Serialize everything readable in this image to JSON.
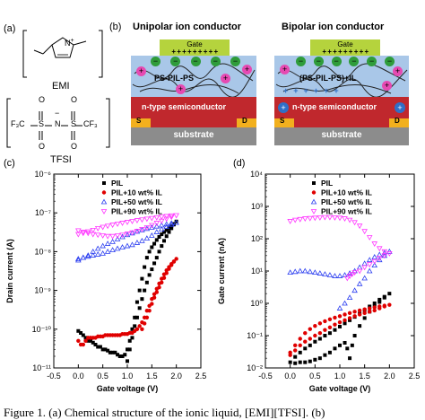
{
  "panel_a": {
    "letter": "(a)",
    "cation_name": "EMI",
    "anion_name": "TFSI",
    "cation_n": "N",
    "cation_plus": "+",
    "anion_n": "N",
    "anion_minus": "−",
    "anion_s": "S",
    "anion_cf3_left": "F₃C",
    "anion_cf3_right": "CF₃",
    "anion_o": "O"
  },
  "panel_b": {
    "letter": "(b)",
    "left_title": "Unipolar ion conductor",
    "right_title": "Bipolar ion conductor",
    "gate": "Gate",
    "left_layer": "PS-PIL-PS",
    "right_layer": "(PS-PIL-PS)+IL",
    "semiconductor": "n-type semiconductor",
    "source": "S",
    "drain": "D",
    "substrate": "substrate",
    "plus": "+",
    "minus": "−",
    "gate_plus_row": "+ + + + + + + + +"
  },
  "panel_c": {
    "letter": "(c)"
  },
  "panel_d": {
    "letter": "(d)"
  },
  "caption_fragment": "Figure 1. (a) Chemical structure of the ionic liquid, [EMI][TFSI]. (b)",
  "colors": {
    "gate": "#b5d33d",
    "electrolyte": "#a9c7e8",
    "semiconductor": "#c0282d",
    "substrate": "#8c8c8c",
    "electrode": "#f2b01e",
    "plus_ion": "#e64ab2",
    "minus_ion": "#2f9c3a",
    "semi_plus": "#2f6fc7",
    "s_pil": "#000000",
    "s_10": "#e00000",
    "s_50": "#2b3ef0",
    "s_90": "#ff33ff"
  },
  "chart_data": [
    {
      "type": "scatter",
      "xlabel": "Gate voltage (V)",
      "ylabel": "Drain current (A)",
      "xlim": [
        -0.5,
        2.5
      ],
      "ylim": [
        1e-11,
        1e-06
      ],
      "yscale": "log",
      "xticks": [
        "-0.5",
        "0.0",
        "0.5",
        "1.0",
        "1.5",
        "2.0",
        "2.5"
      ],
      "yticks": [
        "10⁻¹¹",
        "10⁻¹⁰",
        "10⁻⁹",
        "10⁻⁸",
        "10⁻⁷",
        "10⁻⁶"
      ],
      "legend_position": "top-center",
      "series": [
        {
          "name": "PIL",
          "marker": "square",
          "color": "#000000",
          "x": [
            0.0,
            0.05,
            0.1,
            0.15,
            0.2,
            0.25,
            0.3,
            0.35,
            0.4,
            0.45,
            0.5,
            0.55,
            0.6,
            0.65,
            0.7,
            0.75,
            0.8,
            0.85,
            0.9,
            0.95,
            1.0,
            1.05,
            1.1,
            1.15,
            1.2,
            1.25,
            1.3,
            1.35,
            1.4,
            1.45,
            1.5,
            1.55,
            1.6,
            1.65,
            1.7,
            1.75,
            1.8,
            1.85,
            1.9,
            1.95,
            2.0,
            1.95,
            1.9,
            1.85,
            1.8,
            1.75,
            1.7,
            1.65,
            1.6,
            1.55,
            1.5,
            1.45,
            1.4,
            1.35,
            1.3,
            1.25,
            1.2,
            1.15,
            1.1,
            1.05,
            1.0
          ],
          "y": [
            9e-11,
            8e-11,
            7e-11,
            6e-11,
            5e-11,
            5e-11,
            4.5e-11,
            4e-11,
            3.5e-11,
            3.5e-11,
            3e-11,
            3e-11,
            2.8e-11,
            2.5e-11,
            2.5e-11,
            2.5e-11,
            2.2e-11,
            2e-11,
            2e-11,
            2.2e-11,
            3e-11,
            5e-11,
            1e-10,
            2e-10,
            5e-10,
            1e-09,
            2e-09,
            4e-09,
            7e-09,
            1e-08,
            1.3e-08,
            1.6e-08,
            2e-08,
            2.4e-08,
            2.8e-08,
            3.2e-08,
            3.6e-08,
            4e-08,
            4.6e-08,
            5.2e-08,
            6e-08,
            5e-08,
            4e-08,
            3.2e-08,
            2.5e-08,
            1.9e-08,
            1.4e-08,
            1e-08,
            7e-09,
            5e-09,
            3.5e-09,
            2.5e-09,
            1.6e-09,
            1e-09,
            6e-10,
            3.5e-10,
            2e-10,
            1.2e-10,
            6e-11,
            3e-11,
            1.5e-11
          ]
        },
        {
          "name": "PIL+10 wt% IL",
          "marker": "circle",
          "color": "#e00000",
          "x": [
            0.0,
            0.05,
            0.1,
            0.15,
            0.2,
            0.25,
            0.3,
            0.35,
            0.4,
            0.45,
            0.5,
            0.55,
            0.6,
            0.65,
            0.7,
            0.75,
            0.8,
            0.85,
            0.9,
            0.95,
            1.0,
            1.05,
            1.1,
            1.15,
            1.2,
            1.25,
            1.3,
            1.35,
            1.4,
            1.45,
            1.5,
            1.55,
            1.6,
            1.65,
            1.7,
            1.75,
            1.8,
            1.85,
            1.9,
            1.95,
            2.0,
            1.95,
            1.9,
            1.85,
            1.8,
            1.75,
            1.7,
            1.65,
            1.6,
            1.55,
            1.5,
            1.45,
            1.4,
            1.35,
            1.3
          ],
          "y": [
            5e-11,
            4e-11,
            4e-11,
            5e-11,
            6e-11,
            6e-11,
            6e-11,
            6e-11,
            6.5e-11,
            6.5e-11,
            6.5e-11,
            7e-11,
            7e-11,
            7e-11,
            7e-11,
            7e-11,
            7e-11,
            7e-11,
            7.5e-11,
            7.5e-11,
            7.5e-11,
            8e-11,
            8e-11,
            9e-11,
            1e-10,
            1.2e-10,
            1.5e-10,
            2e-10,
            3e-10,
            4e-10,
            6e-10,
            8e-10,
            1.1e-09,
            1.5e-09,
            2e-09,
            2.6e-09,
            3.3e-09,
            4e-09,
            4.8e-09,
            5.6e-09,
            6.5e-09,
            5.5e-09,
            4.5e-09,
            3.6e-09,
            2.8e-09,
            2.1e-09,
            1.6e-09,
            1.2e-09,
            9e-10,
            6.5e-10,
            4.5e-10,
            3e-10,
            2e-10,
            1.4e-10,
            1e-10
          ]
        },
        {
          "name": "PIL+50 wt% IL",
          "marker": "triangle-up",
          "color": "#2b3ef0",
          "x": [
            0.0,
            0.1,
            0.2,
            0.3,
            0.4,
            0.5,
            0.6,
            0.7,
            0.8,
            0.9,
            1.0,
            1.1,
            1.2,
            1.3,
            1.4,
            1.5,
            1.6,
            1.7,
            1.8,
            1.9,
            2.0,
            1.9,
            1.8,
            1.7,
            1.6,
            1.5,
            1.4,
            1.3,
            1.2,
            1.1,
            1.0,
            0.9,
            0.8,
            0.7,
            0.6,
            0.5,
            0.4,
            0.3,
            0.2,
            0.1,
            0.0
          ],
          "y": [
            6e-09,
            7e-09,
            8e-09,
            1e-08,
            1.2e-08,
            1.4e-08,
            1.6e-08,
            1.8e-08,
            2.1e-08,
            2.4e-08,
            2.7e-08,
            3e-08,
            3.3e-08,
            3.6e-08,
            3.9e-08,
            4.2e-08,
            4.5e-08,
            4.8e-08,
            5.1e-08,
            5.4e-08,
            5.6e-08,
            5e-08,
            4.4e-08,
            3.8e-08,
            3.2e-08,
            2.6e-08,
            2.2e-08,
            1.9e-08,
            1.7e-08,
            1.5e-08,
            1.4e-08,
            1.3e-08,
            1.2e-08,
            1.1e-08,
            1e-08,
            9e-09,
            8.5e-09,
            8e-09,
            7.5e-09,
            7e-09,
            6.5e-09
          ]
        },
        {
          "name": "PIL+90 wt% IL",
          "marker": "triangle-down",
          "color": "#ff33ff",
          "x": [
            0.0,
            0.1,
            0.2,
            0.3,
            0.4,
            0.5,
            0.6,
            0.7,
            0.8,
            0.9,
            1.0,
            1.1,
            1.2,
            1.3,
            1.4,
            1.5,
            1.6,
            1.7,
            1.8,
            1.9,
            2.0,
            1.9,
            1.8,
            1.7,
            1.6,
            1.5,
            1.4,
            1.3,
            1.2,
            1.1,
            1.0,
            0.9,
            0.8,
            0.7,
            0.6,
            0.5,
            0.4,
            0.3,
            0.2,
            0.1,
            0.0
          ],
          "y": [
            2.8e-08,
            3e-08,
            3.3e-08,
            3.6e-08,
            4e-08,
            4.3e-08,
            4.6e-08,
            4.9e-08,
            5.2e-08,
            5.5e-08,
            5.8e-08,
            6.1e-08,
            6.4e-08,
            6.7e-08,
            7e-08,
            7.3e-08,
            7.6e-08,
            7.9e-08,
            8.2e-08,
            8.5e-08,
            8.6e-08,
            7.8e-08,
            7e-08,
            6.2e-08,
            5.5e-08,
            4.8e-08,
            4.2e-08,
            3.8e-08,
            3.4e-08,
            3.1e-08,
            2.9e-08,
            2.7e-08,
            2.6e-08,
            2.5e-08,
            2.5e-08,
            2.6e-08,
            2.7e-08,
            2.8e-08,
            3e-08,
            3.2e-08,
            3.5e-08
          ]
        }
      ]
    },
    {
      "type": "scatter",
      "xlabel": "Gate voltage (V)",
      "ylabel": "Gate current (nA)",
      "xlim": [
        -0.5,
        2.5
      ],
      "ylim": [
        0.01,
        10000
      ],
      "yscale": "log",
      "xticks": [
        "-0.5",
        "0.0",
        "0.5",
        "1.0",
        "1.5",
        "2.0",
        "2.5"
      ],
      "yticks": [
        "10⁻²",
        "10⁻¹",
        "10⁰",
        "10¹",
        "10²",
        "10³",
        "10⁴"
      ],
      "legend_position": "top-center",
      "series": [
        {
          "name": "PIL",
          "marker": "square",
          "color": "#000000",
          "x": [
            0.0,
            0.1,
            0.2,
            0.3,
            0.4,
            0.5,
            0.6,
            0.7,
            0.8,
            0.9,
            1.0,
            1.1,
            1.2,
            1.3,
            1.4,
            1.5,
            1.6,
            1.7,
            1.8,
            1.9,
            2.0,
            1.9,
            1.8,
            1.7,
            1.6,
            1.5,
            1.4,
            1.3,
            1.25,
            1.2,
            1.15,
            1.1,
            1.0,
            0.9,
            0.8,
            0.7,
            0.6,
            0.5,
            0.4,
            0.3,
            0.2,
            0.1
          ],
          "y": [
            0.015,
            0.022,
            0.03,
            0.04,
            0.05,
            0.065,
            0.08,
            0.1,
            0.12,
            0.15,
            0.19,
            0.24,
            0.3,
            0.38,
            0.48,
            0.62,
            0.8,
            1.0,
            1.3,
            1.6,
            2.0,
            1.5,
            1.1,
            0.8,
            0.55,
            0.35,
            0.2,
            0.1,
            0.05,
            0.02,
            0.04,
            0.06,
            0.05,
            0.04,
            0.03,
            0.025,
            0.02,
            0.018,
            0.016,
            0.015,
            0.015,
            0.014
          ]
        },
        {
          "name": "PIL+10 wt% IL",
          "marker": "circle",
          "color": "#e00000",
          "x": [
            0.0,
            0.1,
            0.2,
            0.3,
            0.4,
            0.5,
            0.6,
            0.7,
            0.8,
            0.9,
            1.0,
            1.1,
            1.2,
            1.3,
            1.4,
            1.5,
            1.6,
            1.7,
            1.8,
            1.9,
            2.0,
            1.9,
            1.8,
            1.7,
            1.6,
            1.5,
            1.4,
            1.3,
            1.2,
            1.1,
            1.0,
            0.9,
            0.8,
            0.7,
            0.6,
            0.5,
            0.4,
            0.3,
            0.2,
            0.1,
            0.0
          ],
          "y": [
            0.025,
            0.035,
            0.05,
            0.065,
            0.08,
            0.1,
            0.12,
            0.15,
            0.18,
            0.22,
            0.26,
            0.3,
            0.35,
            0.4,
            0.45,
            0.5,
            0.55,
            0.6,
            0.7,
            0.8,
            0.9,
            0.85,
            0.8,
            0.75,
            0.7,
            0.65,
            0.6,
            0.55,
            0.5,
            0.45,
            0.4,
            0.36,
            0.32,
            0.28,
            0.24,
            0.2,
            0.16,
            0.12,
            0.08,
            0.05,
            0.03
          ]
        },
        {
          "name": "PIL+50 wt% IL",
          "marker": "triangle-up",
          "color": "#2b3ef0",
          "x": [
            0.0,
            0.1,
            0.2,
            0.3,
            0.4,
            0.5,
            0.6,
            0.7,
            0.8,
            0.9,
            1.0,
            1.1,
            1.2,
            1.3,
            1.4,
            1.5,
            1.6,
            1.7,
            1.8,
            1.9,
            2.0,
            1.9,
            1.8,
            1.7,
            1.6,
            1.5,
            1.4,
            1.3,
            1.2,
            1.1,
            1.0
          ],
          "y": [
            9,
            9.5,
            10,
            10,
            9.5,
            9,
            8.5,
            8,
            7.5,
            7,
            7,
            7.5,
            8.5,
            10,
            13,
            17,
            22,
            27,
            32,
            36,
            40,
            30,
            22,
            15,
            10,
            6,
            4,
            2.5,
            1.5,
            1,
            0.7
          ]
        },
        {
          "name": "PIL+90 wt% IL",
          "marker": "triangle-down",
          "color": "#ff33ff",
          "x": [
            0.0,
            0.1,
            0.2,
            0.3,
            0.4,
            0.5,
            0.6,
            0.7,
            0.8,
            0.9,
            1.0,
            1.1,
            1.2,
            1.3,
            1.4,
            1.5,
            1.6,
            1.7,
            1.8,
            1.9,
            2.0,
            1.9,
            1.8,
            1.7,
            1.6,
            1.5,
            1.4,
            1.3,
            1.25,
            1.2,
            1.15
          ],
          "y": [
            350,
            380,
            400,
            420,
            430,
            440,
            450,
            460,
            460,
            450,
            440,
            420,
            380,
            320,
            250,
            170,
            110,
            70,
            50,
            40,
            35,
            30,
            25,
            20,
            16,
            13,
            10,
            9,
            8,
            7,
            6
          ]
        }
      ]
    }
  ]
}
